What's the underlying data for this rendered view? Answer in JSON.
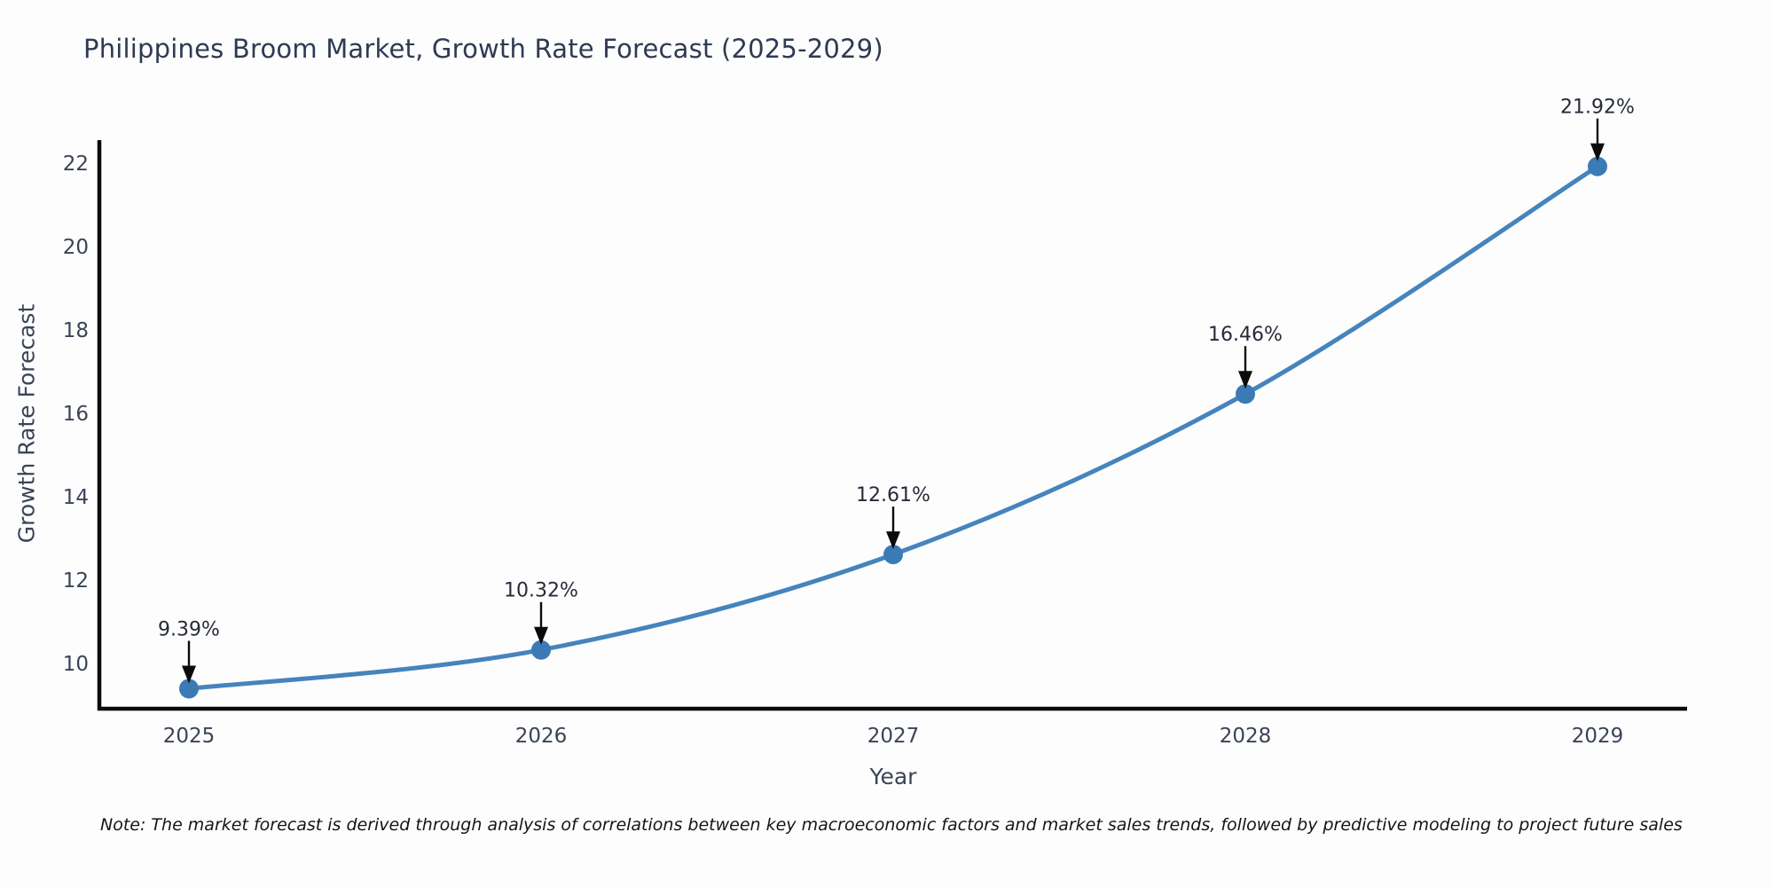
{
  "page": {
    "background_color": "#fdfdfd"
  },
  "footer": {
    "note": "Note: The market forecast is derived through analysis of correlations between key macroeconomic factors and market sales trends, followed by predictive modeling to project future sales"
  },
  "chart_data": {
    "type": "line",
    "title": "Philippines Broom Market, Growth Rate Forecast (2025-2029)",
    "xlabel": "Year",
    "ylabel": "Growth Rate Forecast",
    "categories": [
      "2025",
      "2026",
      "2027",
      "2028",
      "2029"
    ],
    "series": [
      {
        "name": "Growth Rate Forecast",
        "values": [
          9.39,
          10.32,
          12.61,
          16.46,
          21.92
        ],
        "point_labels": [
          "9.39%",
          "10.32%",
          "12.61%",
          "16.46%",
          "21.92%"
        ]
      }
    ],
    "y_ticks": [
      10,
      12,
      14,
      16,
      18,
      20,
      22
    ],
    "ylim": [
      8.91,
      22.55
    ],
    "grid": false,
    "legend_position": "none",
    "marker_style": "circle",
    "annotation_arrows": true,
    "colors": {
      "line": "#4584bc",
      "marker": "#3c7ab6",
      "axis": "#0a0a0a",
      "title_text": "#2f3a52",
      "tick_text": "#3a4456",
      "annotation_text": "#252b38",
      "arrow": "#0b0b0b",
      "note_text": "#151515",
      "background": "#fdfdfd"
    }
  }
}
